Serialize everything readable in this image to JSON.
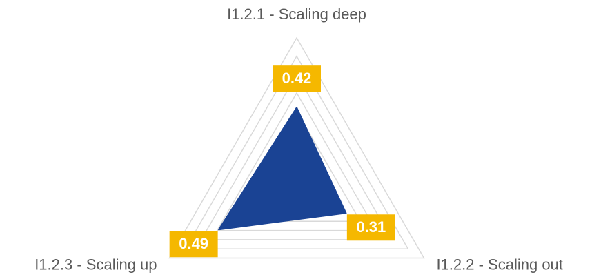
{
  "chart_data": {
    "type": "radar",
    "categories": [
      "I1.2.1 - Scaling deep",
      "I1.2.2 - Scaling out",
      "I1.2.3 - Scaling up"
    ],
    "values": [
      0.42,
      0.31,
      0.49
    ],
    "color": "#1a4394",
    "label_color": "#f5b800",
    "ylim": [
      0,
      0.8
    ],
    "yticks": [
      0.1,
      0.2,
      0.3,
      0.4,
      0.5,
      0.6,
      0.7,
      0.8
    ],
    "grid": true
  }
}
